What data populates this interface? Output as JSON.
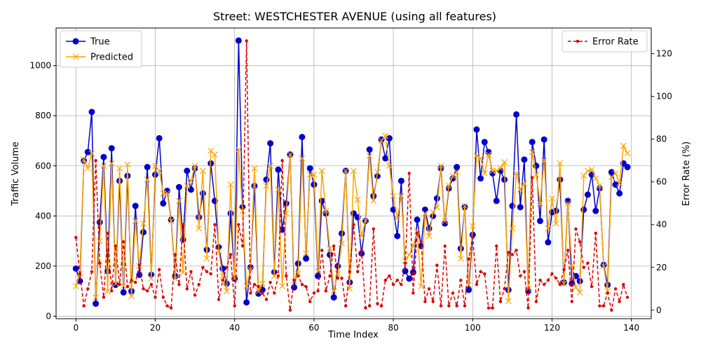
{
  "chart_data": {
    "type": "line",
    "title": "Street: WESTCHESTER AVENUE (using all features)",
    "xlabel": "Time Index",
    "ylabel_left": "Traffic Volume",
    "ylabel_right": "Error Rate (%)",
    "xlim": [
      -5,
      145
    ],
    "ylim_left": [
      -10,
      1150
    ],
    "ylim_right": [
      -4,
      132
    ],
    "xticks": [
      "0",
      "20",
      "40",
      "60",
      "80",
      "100",
      "120",
      "140"
    ],
    "yticks_left": [
      "0",
      "200",
      "400",
      "600",
      "800",
      "1000"
    ],
    "yticks_right": [
      "0",
      "20",
      "40",
      "60",
      "80",
      "100",
      "120"
    ],
    "grid": true,
    "legend_left_position": "upper-left",
    "legend_right_position": "upper-right",
    "series": [
      {
        "name": "True",
        "axis": "left",
        "color": "#0000cc",
        "marker": "circle",
        "values": [
          190,
          140,
          620,
          655,
          815,
          50,
          375,
          635,
          180,
          670,
          125,
          540,
          95,
          560,
          100,
          440,
          165,
          335,
          595,
          165,
          565,
          710,
          450,
          500,
          385,
          160,
          515,
          305,
          580,
          505,
          590,
          395,
          490,
          265,
          610,
          460,
          275,
          190,
          130,
          410,
          150,
          1100,
          435,
          55,
          195,
          520,
          90,
          105,
          545,
          690,
          175,
          585,
          345,
          450,
          645,
          115,
          210,
          715,
          230,
          590,
          525,
          160,
          460,
          410,
          245,
          75,
          200,
          330,
          580,
          135,
          410,
          395,
          250,
          380,
          665,
          480,
          560,
          705,
          630,
          710,
          425,
          320,
          540,
          180,
          150,
          175,
          385,
          280,
          425,
          350,
          400,
          470,
          590,
          370,
          510,
          550,
          595,
          270,
          435,
          105,
          325,
          745,
          550,
          695,
          655,
          570,
          460,
          580,
          545,
          105,
          440,
          805,
          435,
          625,
          100,
          695,
          600,
          380,
          705,
          295,
          415,
          420,
          545,
          135,
          460,
          130,
          160,
          140,
          425,
          485,
          565,
          420,
          510,
          205,
          125,
          575,
          525,
          490,
          610,
          595
        ]
      },
      {
        "name": "Predicted",
        "axis": "left",
        "color": "#ffa500",
        "marker": "x",
        "values": [
          120,
          170,
          625,
          590,
          650,
          75,
          300,
          600,
          100,
          610,
          130,
          590,
          120,
          605,
          80,
          380,
          200,
          370,
          545,
          150,
          600,
          580,
          490,
          490,
          380,
          150,
          460,
          175,
          520,
          540,
          600,
          350,
          580,
          230,
          660,
          645,
          260,
          160,
          100,
          525,
          150,
          665,
          420,
          120,
          185,
          590,
          100,
          130,
          520,
          600,
          160,
          505,
          120,
          410,
          645,
          140,
          170,
          630,
          250,
          565,
          565,
          180,
          580,
          420,
          270,
          100,
          170,
          290,
          580,
          110,
          580,
          465,
          320,
          380,
          640,
          460,
          575,
          700,
          720,
          600,
          480,
          390,
          480,
          220,
          245,
          280,
          340,
          120,
          410,
          320,
          415,
          435,
          600,
          380,
          520,
          560,
          575,
          230,
          440,
          125,
          360,
          640,
          630,
          570,
          645,
          580,
          580,
          590,
          615,
          60,
          350,
          570,
          505,
          530,
          110,
          655,
          565,
          450,
          620,
          350,
          470,
          370,
          610,
          130,
          450,
          200,
          115,
          95,
          560,
          580,
          585,
          550,
          520,
          200,
          100,
          555,
          570,
          530,
          680,
          650
        ]
      },
      {
        "name": "Error Rate",
        "axis": "right",
        "color": "#dd0000",
        "marker": "dot",
        "values": [
          34,
          17,
          2,
          10,
          18,
          70,
          22,
          6,
          36,
          9,
          30,
          12,
          32,
          11,
          14,
          13,
          21,
          10,
          9,
          12,
          6,
          19,
          6,
          2,
          1,
          26,
          12,
          40,
          10,
          18,
          7,
          12,
          20,
          18,
          17,
          40,
          5,
          14,
          20,
          26,
          2,
          40,
          30,
          126,
          8,
          12,
          11,
          8,
          5,
          13,
          8,
          16,
          70,
          16,
          0,
          14,
          16,
          12,
          11,
          4,
          8,
          9,
          28,
          9,
          16,
          30,
          15,
          15,
          2,
          18,
          40,
          18,
          28,
          1,
          2,
          38,
          3,
          2,
          14,
          16,
          12,
          14,
          12,
          22,
          64,
          8,
          36,
          32,
          4,
          10,
          4,
          21,
          2,
          30,
          2,
          8,
          2,
          14,
          2,
          24,
          34,
          12,
          18,
          17,
          1,
          1,
          30,
          4,
          10,
          27,
          26,
          28,
          16,
          18,
          1,
          62,
          4,
          14,
          12,
          14,
          17,
          15,
          12,
          19,
          28,
          4,
          38,
          32,
          20,
          22,
          11,
          36,
          2,
          2,
          8,
          0,
          10,
          4,
          12,
          6
        ]
      }
    ]
  }
}
